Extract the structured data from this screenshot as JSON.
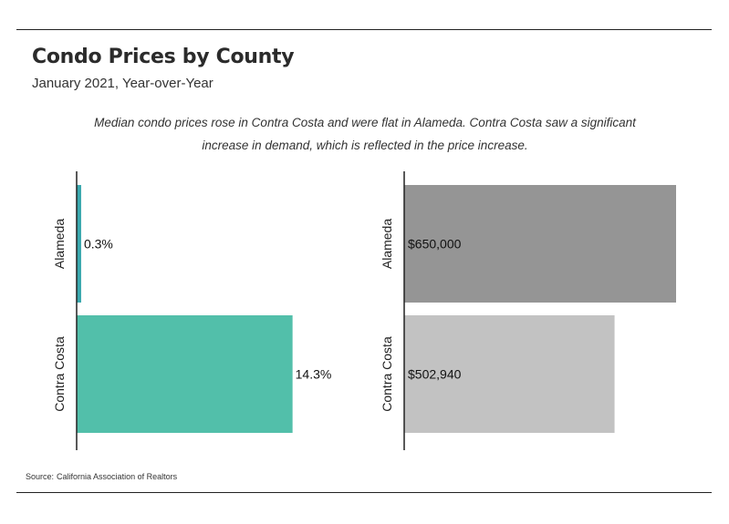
{
  "title": "Condo Prices by County",
  "subtitle": "January 2021, Year-over-Year",
  "annotation": "Median condo prices rose in Contra Costa and were flat in Alameda. Contra Costa saw a significant increase in demand, which is reflected in the price increase.",
  "source_label": "Source:",
  "source_value": "California Association of Realtors",
  "chart_data": [
    {
      "type": "bar",
      "orientation": "horizontal",
      "categories": [
        "Alameda",
        "Contra Costa"
      ],
      "values": [
        0.3,
        14.3
      ],
      "value_labels": [
        "0.3%",
        "14.3%"
      ],
      "unit": "%",
      "xlim": [
        0,
        22.6
      ],
      "colors": [
        "#3aa8ae",
        "#52bfaa"
      ],
      "grid": false
    },
    {
      "type": "bar",
      "orientation": "horizontal",
      "categories": [
        "Alameda",
        "Contra Costa"
      ],
      "values": [
        650000,
        502940
      ],
      "value_labels": [
        "$650,000",
        "$502,940"
      ],
      "unit": "$",
      "xlim": [
        0,
        650000
      ],
      "colors": [
        "#959595",
        "#c2c2c2"
      ],
      "grid": false
    }
  ]
}
